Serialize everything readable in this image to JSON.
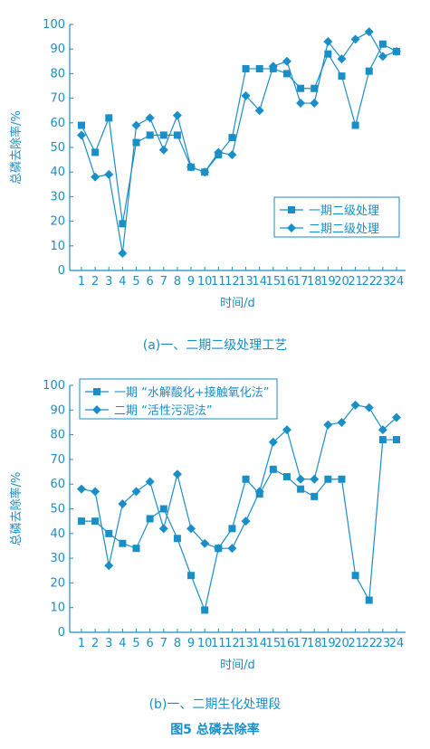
{
  "colors": {
    "accent": "#1a8ec7"
  },
  "figure_title": "图5 总磷去除率",
  "chart_data": [
    {
      "type": "line",
      "caption": "(a)一、二期二级处理工艺",
      "xlabel": "时间/d",
      "ylabel": "总磷去除率/%",
      "x": [
        1,
        2,
        3,
        4,
        5,
        6,
        7,
        8,
        9,
        10,
        11,
        12,
        13,
        14,
        15,
        16,
        17,
        18,
        19,
        20,
        21,
        22,
        23,
        24
      ],
      "ylim": [
        0,
        100
      ],
      "yticks": [
        0,
        10,
        20,
        30,
        40,
        50,
        60,
        70,
        80,
        90,
        100
      ],
      "legend_position": "right",
      "series": [
        {
          "name": "一期二级处理",
          "marker": "square",
          "values": [
            59,
            48,
            62,
            19,
            52,
            55,
            55,
            55,
            42,
            40,
            47,
            54,
            82,
            82,
            82,
            80,
            74,
            74,
            88,
            79,
            59,
            81,
            92,
            89
          ]
        },
        {
          "name": "二期二级处理",
          "marker": "diamond",
          "values": [
            55,
            38,
            39,
            7,
            59,
            62,
            49,
            63,
            42,
            40,
            48,
            47,
            71,
            65,
            83,
            85,
            68,
            68,
            93,
            86,
            94,
            97,
            87,
            89
          ]
        }
      ]
    },
    {
      "type": "line",
      "caption": "(b)一、二期生化处理段",
      "xlabel": "时间/d",
      "ylabel": "总磷去除率/%",
      "x": [
        1,
        2,
        3,
        4,
        5,
        6,
        7,
        8,
        9,
        10,
        11,
        12,
        13,
        14,
        15,
        16,
        17,
        18,
        19,
        20,
        21,
        22,
        23,
        24
      ],
      "ylim": [
        0,
        100
      ],
      "yticks": [
        0,
        10,
        20,
        30,
        40,
        50,
        60,
        70,
        80,
        90,
        100
      ],
      "legend_position": "top-left",
      "series": [
        {
          "name": "一期 “水解酸化+接触氧化法”",
          "marker": "square",
          "values": [
            45,
            45,
            40,
            36,
            34,
            46,
            50,
            38,
            23,
            9,
            34,
            42,
            62,
            56,
            66,
            63,
            58,
            55,
            62,
            62,
            23,
            13,
            78,
            78
          ]
        },
        {
          "name": "二期 “活性污泥法”",
          "marker": "diamond",
          "values": [
            58,
            57,
            27,
            52,
            57,
            61,
            42,
            64,
            42,
            36,
            34,
            34,
            45,
            57,
            77,
            82,
            62,
            62,
            84,
            85,
            92,
            91,
            82,
            87
          ]
        }
      ]
    }
  ]
}
